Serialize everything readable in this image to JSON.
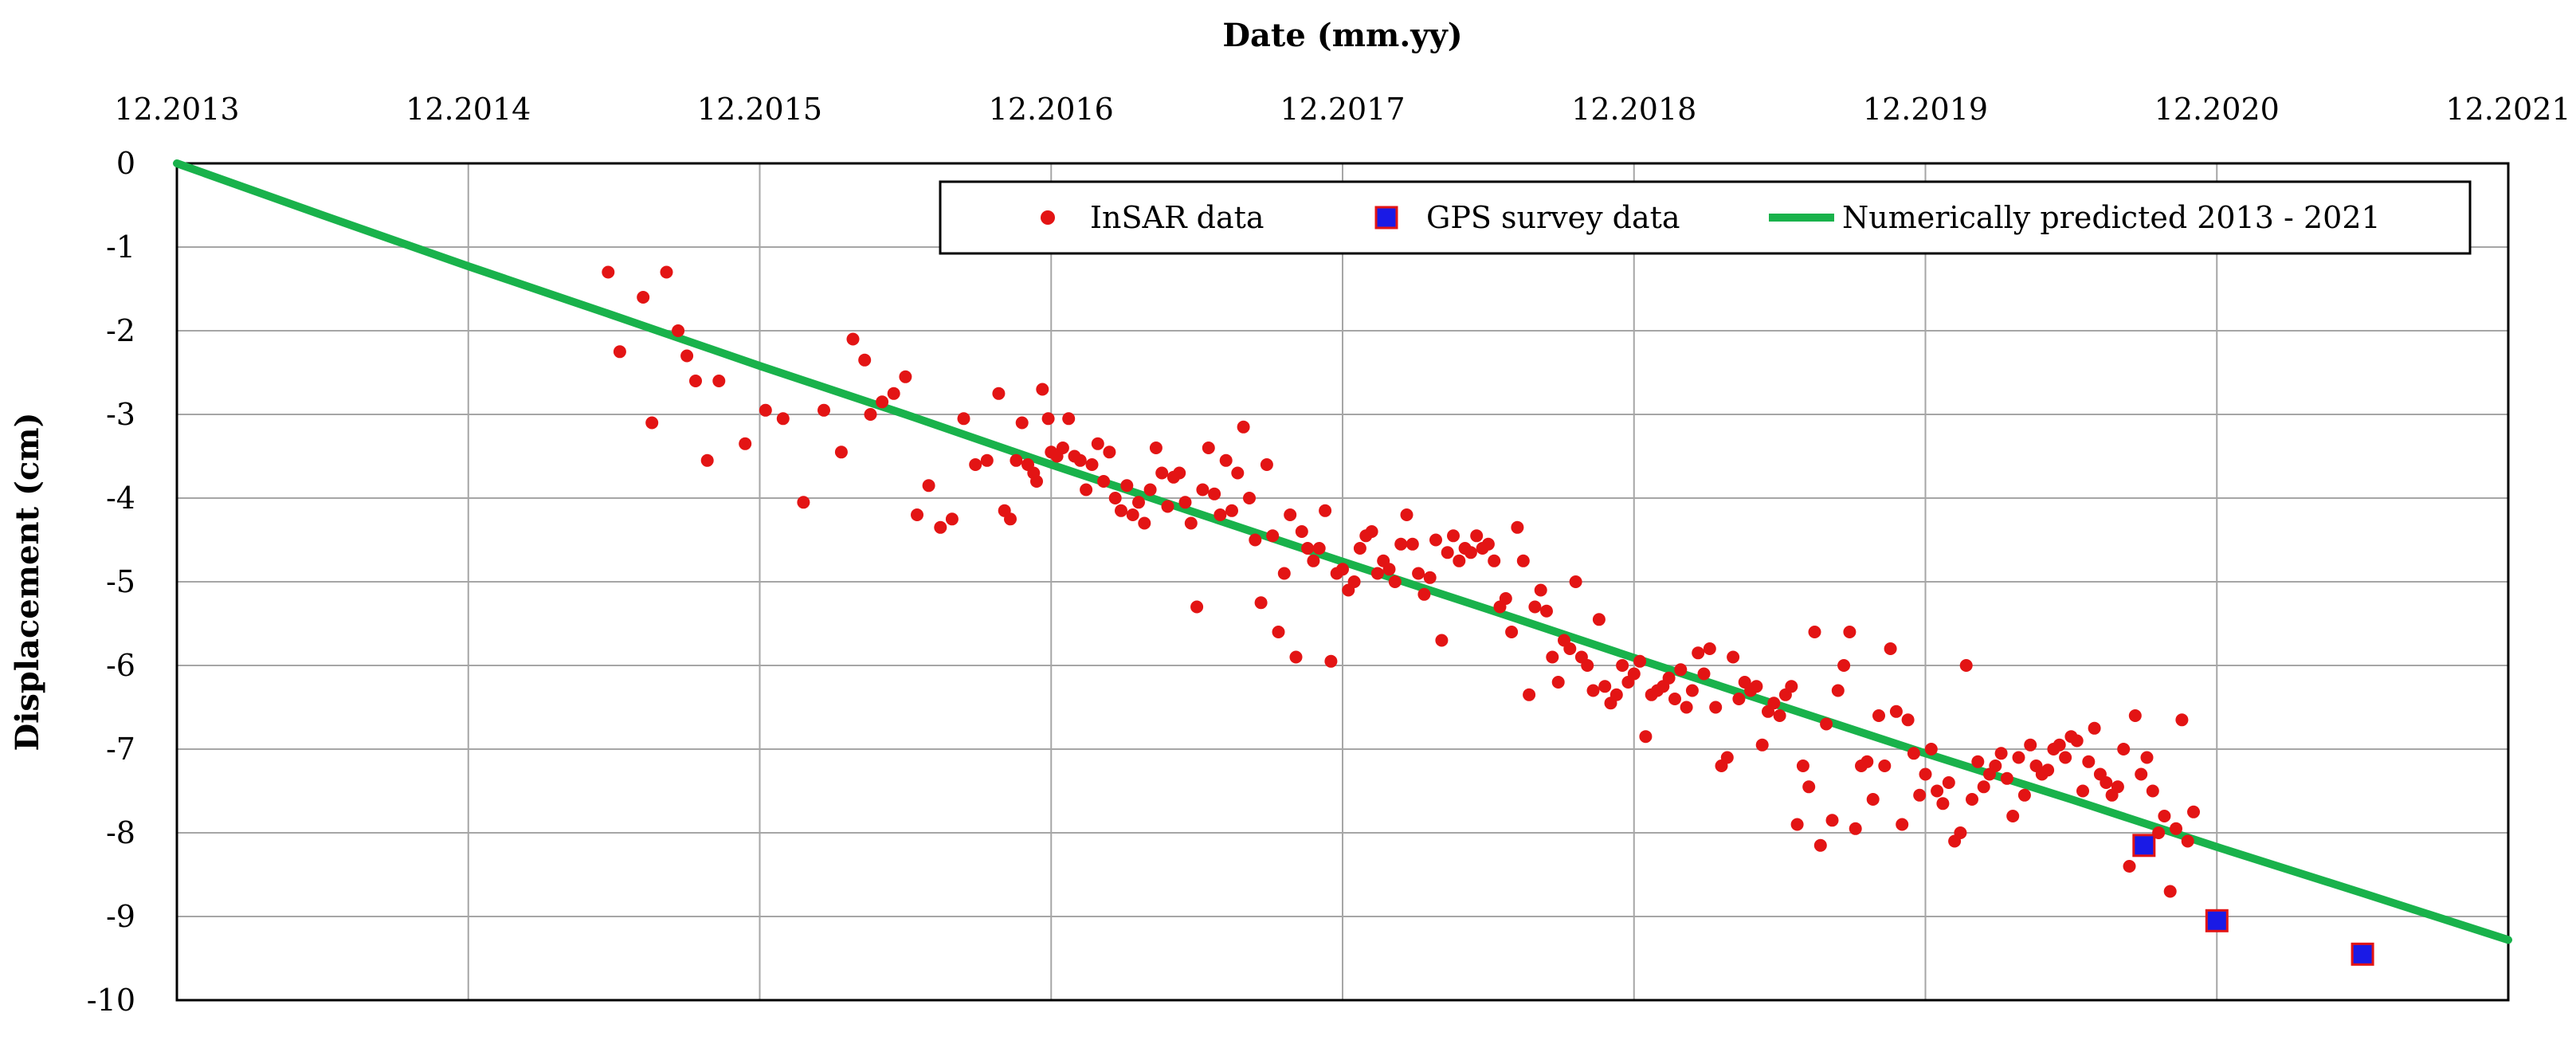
{
  "colors": {
    "insar": "#e31414",
    "gps_fill": "#1a1ae6",
    "gps_edge": "#e31414",
    "prediction": "#19b24b",
    "grid": "#a6a6a6",
    "axis": "#000000"
  },
  "chart_data": {
    "type": "scatter",
    "title": "",
    "xlabel": "Date (mm.yy)",
    "ylabel": "Displacement (cm)",
    "x_axis_position": "top",
    "xlim": [
      0,
      8
    ],
    "ylim": [
      -10,
      0
    ],
    "grid": true,
    "x_ticks": [
      {
        "value": 0,
        "label": "12.2013"
      },
      {
        "value": 1,
        "label": "12.2014"
      },
      {
        "value": 2,
        "label": "12.2015"
      },
      {
        "value": 3,
        "label": "12.2016"
      },
      {
        "value": 4,
        "label": "12.2017"
      },
      {
        "value": 5,
        "label": "12.2018"
      },
      {
        "value": 6,
        "label": "12.2019"
      },
      {
        "value": 7,
        "label": "12.2020"
      },
      {
        "value": 8,
        "label": "12.2021"
      }
    ],
    "y_ticks": [
      {
        "value": 0,
        "label": "0"
      },
      {
        "value": -1,
        "label": "-1"
      },
      {
        "value": -2,
        "label": "-2"
      },
      {
        "value": -3,
        "label": "-3"
      },
      {
        "value": -4,
        "label": "-4"
      },
      {
        "value": -5,
        "label": "-5"
      },
      {
        "value": -6,
        "label": "-6"
      },
      {
        "value": -7,
        "label": "-7"
      },
      {
        "value": -8,
        "label": "-8"
      },
      {
        "value": -9,
        "label": "-9"
      },
      {
        "value": -10,
        "label": "-10"
      }
    ],
    "legend_position": "top-right",
    "series": [
      {
        "name": "InSAR data",
        "kind": "scatter",
        "marker": "circle",
        "points": [
          [
            1.48,
            -1.3
          ],
          [
            1.52,
            -2.25
          ],
          [
            1.6,
            -1.6
          ],
          [
            1.63,
            -3.1
          ],
          [
            1.68,
            -1.3
          ],
          [
            1.72,
            -2.0
          ],
          [
            1.75,
            -2.3
          ],
          [
            1.78,
            -2.6
          ],
          [
            1.82,
            -3.55
          ],
          [
            1.86,
            -2.6
          ],
          [
            1.95,
            -3.35
          ],
          [
            2.02,
            -2.95
          ],
          [
            2.08,
            -3.05
          ],
          [
            2.15,
            -4.05
          ],
          [
            2.22,
            -2.95
          ],
          [
            2.28,
            -3.45
          ],
          [
            2.32,
            -2.1
          ],
          [
            2.36,
            -2.35
          ],
          [
            2.38,
            -3.0
          ],
          [
            2.42,
            -2.85
          ],
          [
            2.46,
            -2.75
          ],
          [
            2.5,
            -2.55
          ],
          [
            2.54,
            -4.2
          ],
          [
            2.58,
            -3.85
          ],
          [
            2.62,
            -4.35
          ],
          [
            2.66,
            -4.25
          ],
          [
            2.7,
            -3.05
          ],
          [
            2.74,
            -3.6
          ],
          [
            2.78,
            -3.55
          ],
          [
            2.82,
            -2.75
          ],
          [
            2.84,
            -4.15
          ],
          [
            2.86,
            -4.25
          ],
          [
            2.88,
            -3.55
          ],
          [
            2.9,
            -3.1
          ],
          [
            2.92,
            -3.6
          ],
          [
            2.94,
            -3.7
          ],
          [
            2.95,
            -3.8
          ],
          [
            2.97,
            -2.7
          ],
          [
            2.99,
            -3.05
          ],
          [
            3.0,
            -3.45
          ],
          [
            3.02,
            -3.5
          ],
          [
            3.04,
            -3.4
          ],
          [
            3.06,
            -3.05
          ],
          [
            3.08,
            -3.5
          ],
          [
            3.1,
            -3.55
          ],
          [
            3.12,
            -3.9
          ],
          [
            3.14,
            -3.6
          ],
          [
            3.16,
            -3.35
          ],
          [
            3.18,
            -3.8
          ],
          [
            3.2,
            -3.45
          ],
          [
            3.22,
            -4.0
          ],
          [
            3.24,
            -4.15
          ],
          [
            3.26,
            -3.85
          ],
          [
            3.28,
            -4.2
          ],
          [
            3.3,
            -4.05
          ],
          [
            3.32,
            -4.3
          ],
          [
            3.34,
            -3.9
          ],
          [
            3.36,
            -3.4
          ],
          [
            3.38,
            -3.7
          ],
          [
            3.4,
            -4.1
          ],
          [
            3.42,
            -3.75
          ],
          [
            3.44,
            -3.7
          ],
          [
            3.46,
            -4.05
          ],
          [
            3.48,
            -4.3
          ],
          [
            3.5,
            -5.3
          ],
          [
            3.52,
            -3.9
          ],
          [
            3.54,
            -3.4
          ],
          [
            3.56,
            -3.95
          ],
          [
            3.58,
            -4.2
          ],
          [
            3.6,
            -3.55
          ],
          [
            3.62,
            -4.15
          ],
          [
            3.64,
            -3.7
          ],
          [
            3.66,
            -3.15
          ],
          [
            3.68,
            -4.0
          ],
          [
            3.7,
            -4.5
          ],
          [
            3.72,
            -5.25
          ],
          [
            3.74,
            -3.6
          ],
          [
            3.76,
            -4.45
          ],
          [
            3.78,
            -5.6
          ],
          [
            3.8,
            -4.9
          ],
          [
            3.82,
            -4.2
          ],
          [
            3.84,
            -5.9
          ],
          [
            3.86,
            -4.4
          ],
          [
            3.88,
            -4.6
          ],
          [
            3.9,
            -4.75
          ],
          [
            3.92,
            -4.6
          ],
          [
            3.94,
            -4.15
          ],
          [
            3.96,
            -5.95
          ],
          [
            3.98,
            -4.9
          ],
          [
            4.0,
            -4.85
          ],
          [
            4.02,
            -5.1
          ],
          [
            4.04,
            -5.0
          ],
          [
            4.06,
            -4.6
          ],
          [
            4.08,
            -4.45
          ],
          [
            4.1,
            -4.4
          ],
          [
            4.12,
            -4.9
          ],
          [
            4.14,
            -4.75
          ],
          [
            4.16,
            -4.85
          ],
          [
            4.18,
            -5.0
          ],
          [
            4.2,
            -4.55
          ],
          [
            4.22,
            -4.2
          ],
          [
            4.24,
            -4.55
          ],
          [
            4.26,
            -4.9
          ],
          [
            4.28,
            -5.15
          ],
          [
            4.3,
            -4.95
          ],
          [
            4.32,
            -4.5
          ],
          [
            4.34,
            -5.7
          ],
          [
            4.36,
            -4.65
          ],
          [
            4.38,
            -4.45
          ],
          [
            4.4,
            -4.75
          ],
          [
            4.42,
            -4.6
          ],
          [
            4.44,
            -4.65
          ],
          [
            4.46,
            -4.45
          ],
          [
            4.48,
            -4.6
          ],
          [
            4.5,
            -4.55
          ],
          [
            4.52,
            -4.75
          ],
          [
            4.54,
            -5.3
          ],
          [
            4.56,
            -5.2
          ],
          [
            4.58,
            -5.6
          ],
          [
            4.6,
            -4.35
          ],
          [
            4.62,
            -4.75
          ],
          [
            4.64,
            -6.35
          ],
          [
            4.66,
            -5.3
          ],
          [
            4.68,
            -5.1
          ],
          [
            4.7,
            -5.35
          ],
          [
            4.72,
            -5.9
          ],
          [
            4.74,
            -6.2
          ],
          [
            4.76,
            -5.7
          ],
          [
            4.78,
            -5.8
          ],
          [
            4.8,
            -5.0
          ],
          [
            4.82,
            -5.9
          ],
          [
            4.84,
            -6.0
          ],
          [
            4.86,
            -6.3
          ],
          [
            4.88,
            -5.45
          ],
          [
            4.9,
            -6.25
          ],
          [
            4.92,
            -6.45
          ],
          [
            4.94,
            -6.35
          ],
          [
            4.96,
            -6.0
          ],
          [
            4.98,
            -6.2
          ],
          [
            5.0,
            -6.1
          ],
          [
            5.02,
            -5.95
          ],
          [
            5.04,
            -6.85
          ],
          [
            5.06,
            -6.35
          ],
          [
            5.08,
            -6.3
          ],
          [
            5.1,
            -6.25
          ],
          [
            5.12,
            -6.15
          ],
          [
            5.14,
            -6.4
          ],
          [
            5.16,
            -6.05
          ],
          [
            5.18,
            -6.5
          ],
          [
            5.2,
            -6.3
          ],
          [
            5.22,
            -5.85
          ],
          [
            5.24,
            -6.1
          ],
          [
            5.26,
            -5.8
          ],
          [
            5.28,
            -6.5
          ],
          [
            5.3,
            -7.2
          ],
          [
            5.32,
            -7.1
          ],
          [
            5.34,
            -5.9
          ],
          [
            5.36,
            -6.4
          ],
          [
            5.38,
            -6.2
          ],
          [
            5.4,
            -6.3
          ],
          [
            5.42,
            -6.25
          ],
          [
            5.44,
            -6.95
          ],
          [
            5.46,
            -6.55
          ],
          [
            5.48,
            -6.45
          ],
          [
            5.5,
            -6.6
          ],
          [
            5.52,
            -6.35
          ],
          [
            5.54,
            -6.25
          ],
          [
            5.56,
            -7.9
          ],
          [
            5.58,
            -7.2
          ],
          [
            5.6,
            -7.45
          ],
          [
            5.62,
            -5.6
          ],
          [
            5.64,
            -8.15
          ],
          [
            5.66,
            -6.7
          ],
          [
            5.68,
            -7.85
          ],
          [
            5.7,
            -6.3
          ],
          [
            5.72,
            -6.0
          ],
          [
            5.74,
            -5.6
          ],
          [
            5.76,
            -7.95
          ],
          [
            5.78,
            -7.2
          ],
          [
            5.8,
            -7.15
          ],
          [
            5.82,
            -7.6
          ],
          [
            5.84,
            -6.6
          ],
          [
            5.86,
            -7.2
          ],
          [
            5.88,
            -5.8
          ],
          [
            5.9,
            -6.55
          ],
          [
            5.92,
            -7.9
          ],
          [
            5.94,
            -6.65
          ],
          [
            5.96,
            -7.05
          ],
          [
            5.98,
            -7.55
          ],
          [
            6.0,
            -7.3
          ],
          [
            6.02,
            -7.0
          ],
          [
            6.04,
            -7.5
          ],
          [
            6.06,
            -7.65
          ],
          [
            6.08,
            -7.4
          ],
          [
            6.1,
            -8.1
          ],
          [
            6.12,
            -8.0
          ],
          [
            6.14,
            -6.0
          ],
          [
            6.16,
            -7.6
          ],
          [
            6.18,
            -7.15
          ],
          [
            6.2,
            -7.45
          ],
          [
            6.22,
            -7.3
          ],
          [
            6.24,
            -7.2
          ],
          [
            6.26,
            -7.05
          ],
          [
            6.28,
            -7.35
          ],
          [
            6.3,
            -7.8
          ],
          [
            6.32,
            -7.1
          ],
          [
            6.34,
            -7.55
          ],
          [
            6.36,
            -6.95
          ],
          [
            6.38,
            -7.2
          ],
          [
            6.4,
            -7.3
          ],
          [
            6.42,
            -7.25
          ],
          [
            6.44,
            -7.0
          ],
          [
            6.46,
            -6.95
          ],
          [
            6.48,
            -7.1
          ],
          [
            6.5,
            -6.85
          ],
          [
            6.52,
            -6.9
          ],
          [
            6.54,
            -7.5
          ],
          [
            6.56,
            -7.15
          ],
          [
            6.58,
            -6.75
          ],
          [
            6.6,
            -7.3
          ],
          [
            6.62,
            -7.4
          ],
          [
            6.64,
            -7.55
          ],
          [
            6.66,
            -7.45
          ],
          [
            6.68,
            -7.0
          ],
          [
            6.7,
            -8.4
          ],
          [
            6.72,
            -6.6
          ],
          [
            6.74,
            -7.3
          ],
          [
            6.76,
            -7.1
          ],
          [
            6.78,
            -7.5
          ],
          [
            6.8,
            -8.0
          ],
          [
            6.82,
            -7.8
          ],
          [
            6.84,
            -8.7
          ],
          [
            6.86,
            -7.95
          ],
          [
            6.88,
            -6.65
          ],
          [
            6.9,
            -8.1
          ],
          [
            6.92,
            -7.75
          ]
        ]
      },
      {
        "name": "GPS survey data",
        "kind": "scatter",
        "marker": "square",
        "points": [
          [
            6.75,
            -8.15
          ],
          [
            7.0,
            -9.05
          ],
          [
            7.5,
            -9.45
          ]
        ]
      },
      {
        "name": "Numerically predicted 2013 - 2021",
        "kind": "line",
        "points": [
          [
            0,
            0
          ],
          [
            0.5,
            -0.62
          ],
          [
            1,
            -1.23
          ],
          [
            1.5,
            -1.82
          ],
          [
            2,
            -2.42
          ],
          [
            2.5,
            -3.0
          ],
          [
            3,
            -3.6
          ],
          [
            3.5,
            -4.18
          ],
          [
            4,
            -4.76
          ],
          [
            4.5,
            -5.33
          ],
          [
            5,
            -5.91
          ],
          [
            5.5,
            -6.48
          ],
          [
            6,
            -7.05
          ],
          [
            6.5,
            -7.6
          ],
          [
            7,
            -8.17
          ],
          [
            7.5,
            -8.72
          ],
          [
            8,
            -9.28
          ]
        ]
      }
    ]
  }
}
